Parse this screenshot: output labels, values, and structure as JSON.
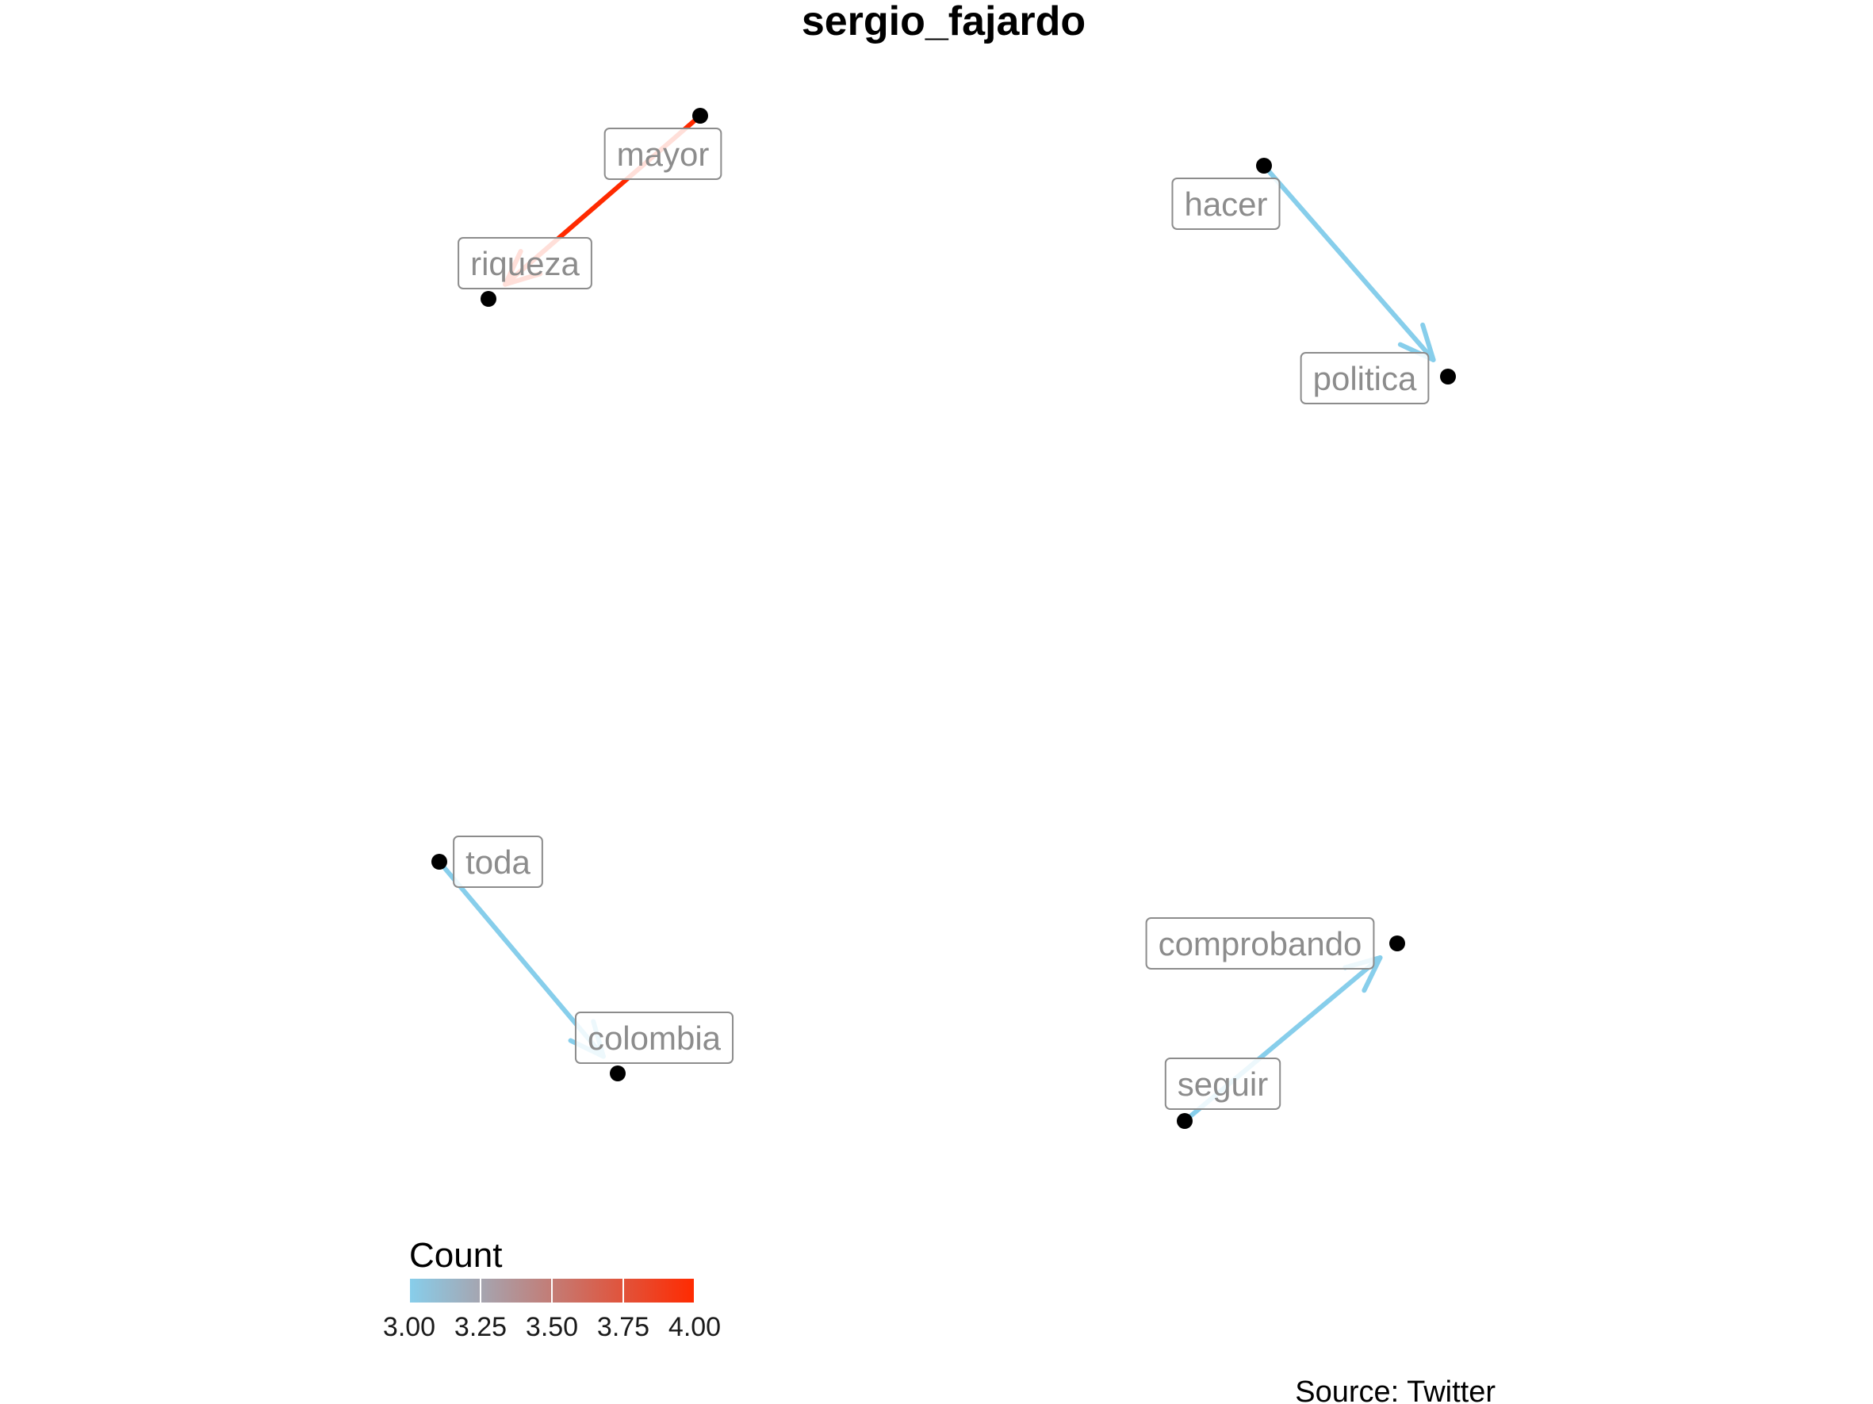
{
  "title": "sergio_fajardo",
  "caption": "Source: Twitter",
  "colors": {
    "low": "#87ceeb",
    "high": "#ff2a00",
    "node": "#000000",
    "label_text": "#8c8c8c",
    "label_border": "#8c8c8c"
  },
  "chart_data": {
    "type": "network",
    "nodes": [
      {
        "id": "mayor",
        "label": "mayor"
      },
      {
        "id": "riqueza",
        "label": "riqueza"
      },
      {
        "id": "hacer",
        "label": "hacer"
      },
      {
        "id": "politica",
        "label": "politica"
      },
      {
        "id": "toda",
        "label": "toda"
      },
      {
        "id": "colombia",
        "label": "colombia"
      },
      {
        "id": "seguir",
        "label": "seguir"
      },
      {
        "id": "comprobando",
        "label": "comprobando"
      }
    ],
    "edges": [
      {
        "from": "mayor",
        "to": "riqueza",
        "count": 4
      },
      {
        "from": "hacer",
        "to": "politica",
        "count": 3
      },
      {
        "from": "toda",
        "to": "colombia",
        "count": 3
      },
      {
        "from": "seguir",
        "to": "comprobando",
        "count": 3
      }
    ],
    "legend": {
      "title": "Count",
      "min": 3,
      "max": 4,
      "ticks": [
        "3.00",
        "3.25",
        "3.50",
        "3.75",
        "4.00"
      ],
      "placement": "bottom-left"
    }
  }
}
